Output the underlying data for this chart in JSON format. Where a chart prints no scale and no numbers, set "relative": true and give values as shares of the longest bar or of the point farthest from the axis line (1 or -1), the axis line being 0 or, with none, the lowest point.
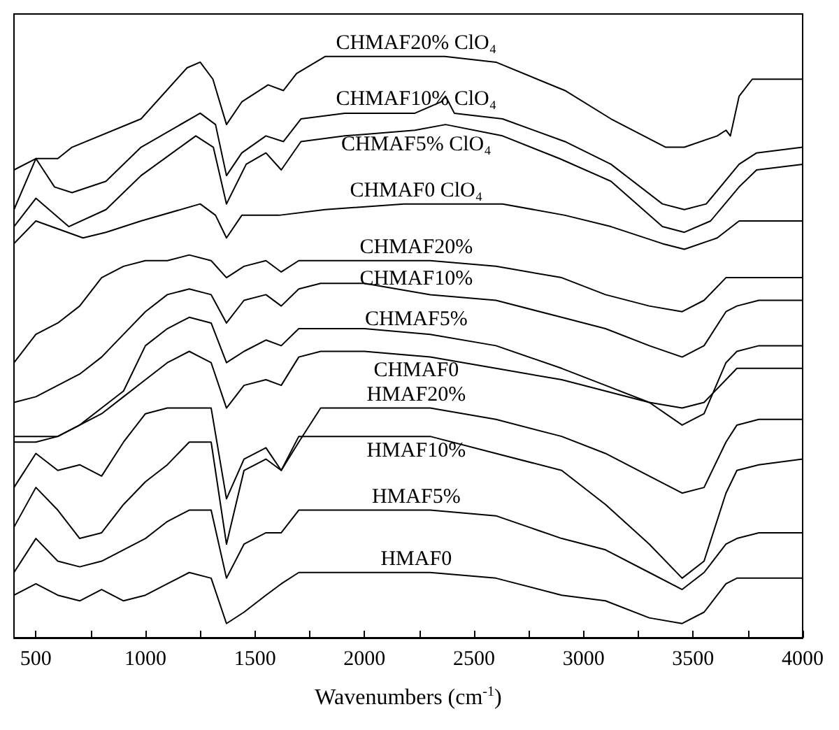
{
  "chart_data": {
    "type": "line",
    "relative": true,
    "xlabel": "Wavenumbers (cm$^{-1}$)",
    "xlim": [
      400,
      4000
    ],
    "xticks": [
      500,
      {
        "value": 750,
        "label": null
      },
      1000,
      {
        "value": 1250,
        "label": null
      },
      1500,
      {
        "value": 1750,
        "label": null
      },
      2000,
      {
        "value": 2250,
        "label": null
      },
      2500,
      {
        "value": 2750,
        "label": null
      },
      3000,
      {
        "value": 3250,
        "label": null
      },
      3500,
      {
        "value": 3750,
        "label": null
      },
      4000
    ],
    "marker": "none",
    "line_style": "solid",
    "series": [
      {
        "name": "CHMAF20% ClO₄",
        "color": "#000000",
        "x": [
          400,
          500,
          600,
          665,
          980,
          1190,
          1250,
          1308,
          1370,
          1440,
          1560,
          1630,
          1690,
          1820,
          2000,
          2200,
          2367,
          2600,
          2915,
          3125,
          3375,
          3460,
          3610,
          3650,
          3670,
          3710,
          3770,
          4000
        ],
        "values": [
          0.8,
          0.82,
          0.82,
          0.84,
          0.89,
          0.98,
          0.99,
          0.96,
          0.88,
          0.92,
          0.95,
          0.94,
          0.97,
          1.0,
          1.0,
          1.0,
          1.0,
          0.99,
          0.94,
          0.89,
          0.84,
          0.84,
          0.86,
          0.87,
          0.86,
          0.93,
          0.96,
          0.96
        ]
      },
      {
        "name": "CHMAF10% ClO₄",
        "color": "#000000",
        "x": [
          400,
          500,
          585,
          665,
          820,
          980,
          1250,
          1320,
          1370,
          1440,
          1550,
          1630,
          1710,
          1910,
          2230,
          2350,
          2370,
          2410,
          2630,
          2915,
          3125,
          3360,
          3460,
          3560,
          3710,
          3790,
          4000
        ],
        "values": [
          0.73,
          0.82,
          0.77,
          0.76,
          0.78,
          0.84,
          0.9,
          0.88,
          0.79,
          0.83,
          0.86,
          0.85,
          0.89,
          0.9,
          0.9,
          0.92,
          0.93,
          0.9,
          0.89,
          0.85,
          0.81,
          0.74,
          0.73,
          0.74,
          0.81,
          0.83,
          0.84
        ]
      },
      {
        "name": "CHMAF5% ClO₄",
        "color": "#000000",
        "x": [
          400,
          500,
          650,
          820,
          980,
          1230,
          1310,
          1370,
          1460,
          1550,
          1620,
          1710,
          1910,
          2230,
          2370,
          2630,
          2890,
          3125,
          3360,
          3460,
          3580,
          3710,
          3790,
          4000
        ],
        "values": [
          0.7,
          0.75,
          0.7,
          0.73,
          0.79,
          0.86,
          0.84,
          0.74,
          0.81,
          0.83,
          0.8,
          0.85,
          0.86,
          0.87,
          0.88,
          0.86,
          0.82,
          0.78,
          0.7,
          0.69,
          0.71,
          0.77,
          0.8,
          0.81
        ]
      },
      {
        "name": "CHMAF0 ClO₄",
        "color": "#000000",
        "x": [
          400,
          500,
          715,
          820,
          980,
          1250,
          1320,
          1370,
          1440,
          1610,
          1820,
          2180,
          2370,
          2630,
          2915,
          3125,
          3360,
          3460,
          3610,
          3710,
          4000
        ],
        "values": [
          0.67,
          0.71,
          0.68,
          0.69,
          0.71,
          0.74,
          0.72,
          0.68,
          0.72,
          0.72,
          0.73,
          0.74,
          0.74,
          0.74,
          0.72,
          0.7,
          0.67,
          0.66,
          0.68,
          0.71,
          0.71
        ]
      },
      {
        "name": "CHMAF20%",
        "color": "#000000",
        "x": [
          400,
          500,
          600,
          700,
          800,
          900,
          1000,
          1100,
          1200,
          1300,
          1370,
          1450,
          1550,
          1620,
          1700,
          1800,
          2000,
          2300,
          2600,
          2900,
          3100,
          3300,
          3450,
          3550,
          3650,
          3700,
          3800,
          4000
        ],
        "values": [
          0.46,
          0.51,
          0.53,
          0.56,
          0.61,
          0.63,
          0.64,
          0.64,
          0.65,
          0.64,
          0.61,
          0.63,
          0.64,
          0.62,
          0.64,
          0.64,
          0.64,
          0.64,
          0.63,
          0.61,
          0.58,
          0.56,
          0.55,
          0.57,
          0.61,
          0.61,
          0.61,
          0.61
        ]
      },
      {
        "name": "CHMAF10%",
        "color": "#000000",
        "x": [
          400,
          500,
          600,
          700,
          800,
          900,
          1000,
          1100,
          1200,
          1300,
          1370,
          1450,
          1550,
          1620,
          1700,
          1800,
          2000,
          2300,
          2600,
          2900,
          3100,
          3300,
          3450,
          3550,
          3650,
          3700,
          3800,
          4000
        ],
        "values": [
          0.39,
          0.4,
          0.42,
          0.44,
          0.47,
          0.51,
          0.55,
          0.58,
          0.59,
          0.58,
          0.53,
          0.57,
          0.58,
          0.56,
          0.59,
          0.6,
          0.6,
          0.58,
          0.57,
          0.54,
          0.52,
          0.49,
          0.47,
          0.49,
          0.55,
          0.56,
          0.57,
          0.57
        ]
      },
      {
        "name": "CHMAF5%",
        "color": "#000000",
        "x": [
          400,
          500,
          600,
          700,
          800,
          900,
          1000,
          1100,
          1200,
          1300,
          1370,
          1450,
          1550,
          1620,
          1700,
          1800,
          2000,
          2300,
          2600,
          2900,
          3100,
          3300,
          3450,
          3550,
          3650,
          3700,
          3800,
          4000
        ],
        "values": [
          0.33,
          0.33,
          0.33,
          0.35,
          0.38,
          0.41,
          0.49,
          0.52,
          0.54,
          0.53,
          0.46,
          0.48,
          0.5,
          0.49,
          0.52,
          0.52,
          0.52,
          0.51,
          0.49,
          0.45,
          0.42,
          0.39,
          0.35,
          0.37,
          0.46,
          0.48,
          0.49,
          0.49
        ]
      },
      {
        "name": "CHMAF0",
        "color": "#000000",
        "x": [
          400,
          500,
          600,
          700,
          800,
          900,
          1000,
          1100,
          1200,
          1300,
          1370,
          1450,
          1550,
          1620,
          1700,
          1800,
          2000,
          2300,
          2600,
          2900,
          3100,
          3300,
          3450,
          3550,
          3650,
          3700,
          3800,
          4000
        ],
        "values": [
          0.32,
          0.32,
          0.33,
          0.35,
          0.37,
          0.4,
          0.43,
          0.46,
          0.48,
          0.46,
          0.38,
          0.42,
          0.43,
          0.42,
          0.47,
          0.48,
          0.48,
          0.47,
          0.45,
          0.43,
          0.41,
          0.39,
          0.38,
          0.39,
          0.43,
          0.45,
          0.45,
          0.45
        ]
      },
      {
        "name": "HMAF20%",
        "color": "#000000",
        "x": [
          400,
          500,
          600,
          700,
          800,
          900,
          1000,
          1100,
          1200,
          1300,
          1370,
          1450,
          1550,
          1620,
          1700,
          1800,
          2000,
          2300,
          2600,
          2900,
          3100,
          3300,
          3450,
          3550,
          3650,
          3700,
          3800,
          4000
        ],
        "values": [
          0.24,
          0.3,
          0.27,
          0.28,
          0.26,
          0.32,
          0.37,
          0.38,
          0.38,
          0.38,
          0.22,
          0.29,
          0.31,
          0.27,
          0.32,
          0.38,
          0.38,
          0.38,
          0.36,
          0.33,
          0.3,
          0.26,
          0.23,
          0.24,
          0.32,
          0.35,
          0.36,
          0.36
        ]
      },
      {
        "name": "HMAF10%",
        "color": "#000000",
        "x": [
          400,
          500,
          600,
          700,
          800,
          900,
          1000,
          1100,
          1200,
          1300,
          1370,
          1450,
          1550,
          1620,
          1700,
          1800,
          2000,
          2300,
          2600,
          2900,
          3100,
          3300,
          3450,
          3550,
          3650,
          3700,
          3800,
          4000
        ],
        "values": [
          0.17,
          0.24,
          0.2,
          0.15,
          0.16,
          0.21,
          0.25,
          0.28,
          0.32,
          0.32,
          0.14,
          0.27,
          0.29,
          0.27,
          0.33,
          0.33,
          0.33,
          0.33,
          0.3,
          0.27,
          0.21,
          0.14,
          0.08,
          0.11,
          0.23,
          0.27,
          0.28,
          0.29
        ]
      },
      {
        "name": "HMAF5%",
        "color": "#000000",
        "x": [
          400,
          500,
          600,
          700,
          800,
          900,
          1000,
          1100,
          1200,
          1300,
          1370,
          1450,
          1550,
          1620,
          1700,
          1800,
          2000,
          2300,
          2600,
          2900,
          3100,
          3300,
          3450,
          3550,
          3650,
          3700,
          3800,
          4000
        ],
        "values": [
          0.09,
          0.15,
          0.11,
          0.1,
          0.11,
          0.13,
          0.15,
          0.18,
          0.2,
          0.2,
          0.08,
          0.14,
          0.16,
          0.16,
          0.2,
          0.2,
          0.2,
          0.2,
          0.19,
          0.15,
          0.13,
          0.09,
          0.06,
          0.09,
          0.14,
          0.15,
          0.16,
          0.16
        ]
      },
      {
        "name": "HMAF0",
        "color": "#000000",
        "x": [
          400,
          500,
          600,
          700,
          800,
          900,
          1000,
          1100,
          1200,
          1300,
          1370,
          1450,
          1550,
          1620,
          1700,
          1800,
          2000,
          2300,
          2600,
          2900,
          3100,
          3300,
          3450,
          3550,
          3650,
          3700,
          3800,
          4000
        ],
        "values": [
          0.05,
          0.07,
          0.05,
          0.04,
          0.06,
          0.04,
          0.05,
          0.07,
          0.09,
          0.08,
          0,
          0.02,
          0.05,
          0.07,
          0.09,
          0.09,
          0.09,
          0.09,
          0.08,
          0.05,
          0.04,
          0.01,
          0,
          0.02,
          0.07,
          0.08,
          0.08,
          0.08
        ]
      }
    ]
  }
}
